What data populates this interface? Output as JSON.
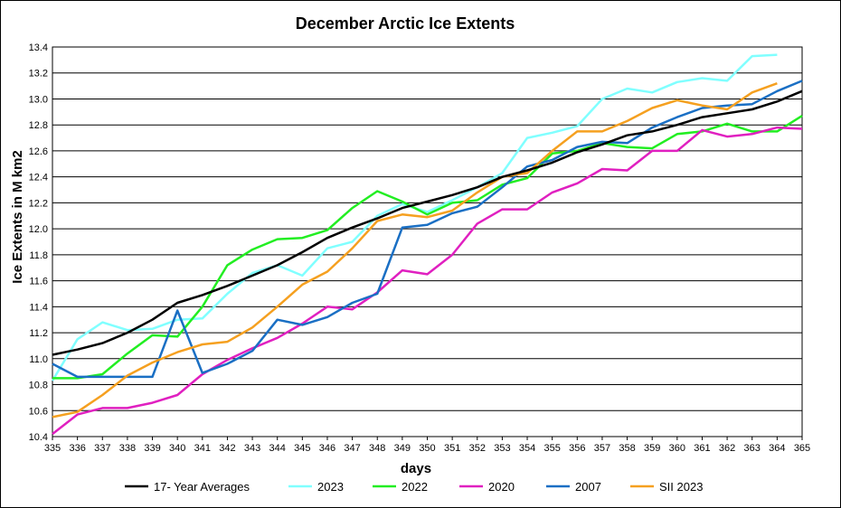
{
  "chart_data": {
    "type": "line",
    "title": "December Arctic Ice Extents",
    "xlabel": "days",
    "ylabel": "Ice Extents in M km2",
    "xlim": [
      335,
      365
    ],
    "ylim": [
      10.4,
      13.4
    ],
    "ystep": 0.2,
    "grid": true,
    "legend": "bottom",
    "x_ticks": [
      335,
      336,
      337,
      338,
      339,
      340,
      341,
      342,
      343,
      344,
      345,
      346,
      347,
      348,
      349,
      350,
      351,
      352,
      353,
      354,
      355,
      356,
      357,
      358,
      359,
      360,
      361,
      362,
      363,
      364,
      365
    ],
    "y_ticks": [
      "10.4",
      "10.6",
      "10.8",
      "11.0",
      "11.2",
      "11.4",
      "11.6",
      "11.8",
      "12.0",
      "12.2",
      "12.4",
      "12.6",
      "12.8",
      "13.0",
      "13.2",
      "13.4"
    ],
    "series": [
      {
        "name": "17- Year Averages",
        "color": "#000000",
        "x": [
          335,
          336,
          337,
          338,
          339,
          340,
          341,
          342,
          343,
          344,
          345,
          346,
          347,
          348,
          349,
          350,
          351,
          352,
          353,
          354,
          355,
          356,
          357,
          358,
          359,
          360,
          361,
          362,
          363,
          364,
          365
        ],
        "values": [
          11.03,
          11.07,
          11.12,
          11.2,
          11.3,
          11.43,
          11.49,
          11.56,
          11.64,
          11.72,
          11.82,
          11.93,
          12.01,
          12.08,
          12.16,
          12.21,
          12.26,
          12.32,
          12.4,
          12.45,
          12.51,
          12.59,
          12.65,
          12.72,
          12.75,
          12.8,
          12.86,
          12.89,
          12.92,
          12.98,
          13.06
        ]
      },
      {
        "name": "2023",
        "color": "#80ffff",
        "x": [
          335,
          336,
          337,
          338,
          339,
          340,
          341,
          342,
          343,
          344,
          345,
          346,
          347,
          348,
          349,
          350,
          351,
          352,
          353,
          354,
          355,
          356,
          357,
          358,
          359,
          360,
          361,
          362,
          363,
          364
        ],
        "values": [
          10.83,
          11.15,
          11.28,
          11.22,
          11.23,
          11.3,
          11.31,
          11.5,
          11.66,
          11.72,
          11.64,
          11.85,
          11.9,
          12.1,
          12.19,
          12.13,
          12.22,
          12.32,
          12.43,
          12.7,
          12.74,
          12.79,
          13.0,
          13.08,
          13.05,
          13.13,
          13.16,
          13.14,
          13.33,
          13.34
        ]
      },
      {
        "name": "2022",
        "color": "#22ee22",
        "x": [
          335,
          336,
          337,
          338,
          339,
          340,
          341,
          342,
          343,
          344,
          345,
          346,
          347,
          348,
          349,
          350,
          351,
          352,
          353,
          354,
          355,
          356,
          357,
          358,
          359,
          360,
          361,
          362,
          363,
          364,
          365
        ],
        "values": [
          10.85,
          10.85,
          10.88,
          11.04,
          11.18,
          11.17,
          11.4,
          11.72,
          11.84,
          11.92,
          11.93,
          11.99,
          12.16,
          12.29,
          12.21,
          12.11,
          12.2,
          12.22,
          12.34,
          12.39,
          12.58,
          12.6,
          12.66,
          12.63,
          12.62,
          12.73,
          12.75,
          12.81,
          12.75,
          12.75,
          12.87
        ]
      },
      {
        "name": "2020",
        "color": "#e020c0",
        "x": [
          335,
          336,
          337,
          338,
          339,
          340,
          341,
          342,
          343,
          344,
          345,
          346,
          347,
          348,
          349,
          350,
          351,
          352,
          353,
          354,
          355,
          356,
          357,
          358,
          359,
          360,
          361,
          362,
          363,
          364,
          365
        ],
        "values": [
          10.42,
          10.57,
          10.62,
          10.62,
          10.66,
          10.72,
          10.88,
          10.99,
          11.08,
          11.16,
          11.27,
          11.4,
          11.38,
          11.51,
          11.68,
          11.65,
          11.8,
          12.04,
          12.15,
          12.15,
          12.28,
          12.35,
          12.46,
          12.45,
          12.6,
          12.6,
          12.76,
          12.71,
          12.73,
          12.78,
          12.77
        ]
      },
      {
        "name": "2007",
        "color": "#1a6fc4",
        "x": [
          335,
          336,
          337,
          338,
          339,
          340,
          341,
          342,
          343,
          344,
          345,
          346,
          347,
          348,
          349,
          350,
          351,
          352,
          353,
          354,
          355,
          356,
          357,
          358,
          359,
          360,
          361,
          362,
          363,
          364,
          365
        ],
        "values": [
          10.96,
          10.86,
          10.86,
          10.86,
          10.86,
          11.37,
          10.89,
          10.96,
          11.06,
          11.3,
          11.26,
          11.32,
          11.43,
          11.5,
          12.01,
          12.03,
          12.12,
          12.17,
          12.32,
          12.48,
          12.53,
          12.63,
          12.67,
          12.66,
          12.78,
          12.86,
          12.93,
          12.95,
          12.96,
          13.06,
          13.14
        ]
      },
      {
        "name": "SII 2023",
        "color": "#f5a020",
        "x": [
          335,
          336,
          337,
          338,
          339,
          340,
          341,
          342,
          343,
          344,
          345,
          346,
          347,
          348,
          349,
          350,
          351,
          352,
          353,
          354,
          355,
          356,
          357,
          358,
          359,
          360,
          361,
          362,
          363,
          364
        ],
        "values": [
          10.55,
          10.59,
          10.72,
          10.87,
          10.97,
          11.05,
          11.11,
          11.13,
          11.24,
          11.4,
          11.57,
          11.67,
          11.85,
          12.06,
          12.11,
          12.09,
          12.14,
          12.28,
          12.4,
          12.43,
          12.6,
          12.75,
          12.75,
          12.83,
          12.93,
          12.99,
          12.95,
          12.92,
          13.05,
          13.12
        ]
      }
    ]
  }
}
